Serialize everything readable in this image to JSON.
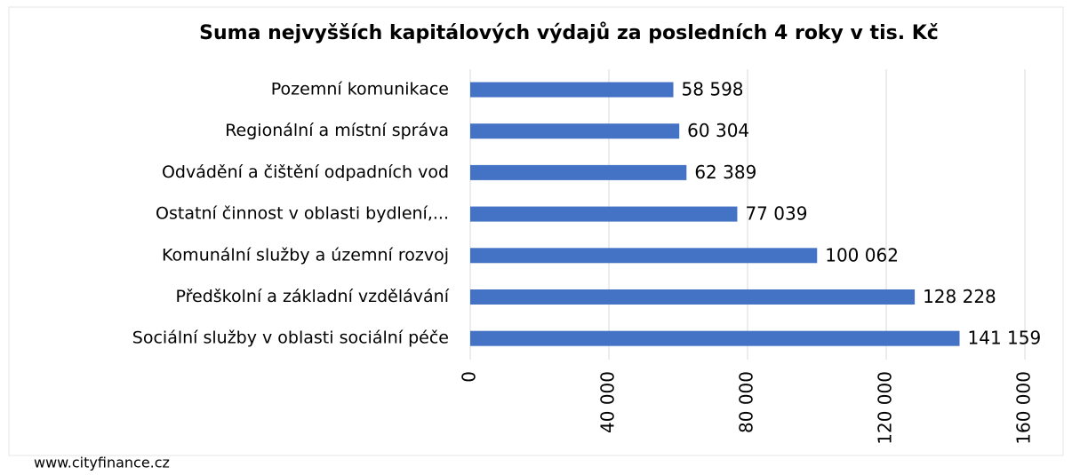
{
  "chart_data": {
    "type": "bar",
    "orientation": "horizontal",
    "title": "Suma nejvyšších kapitálových výdajů za posledních 4 roky v tis. Kč",
    "categories": [
      "Pozemní komunikace",
      "Regionální a místní správa",
      "Odvádění a čištění odpadních vod",
      "Ostatní činnost v oblasti bydlení,...",
      "Komunální služby a územní rozvoj",
      "Předškolní a základní vzdělávání",
      "Sociální služby v oblasti sociální péče"
    ],
    "values": [
      58598,
      60304,
      62389,
      77039,
      100062,
      128228,
      141159
    ],
    "value_labels": [
      "58 598",
      "60 304",
      "62 389",
      "77 039",
      "100 062",
      "128 228",
      "141 159"
    ],
    "color": "#4472c4",
    "xlim": [
      0,
      160000
    ],
    "xticks": [
      0,
      {
        "value": 40000,
        "label": "40 000"
      },
      {
        "value": 80000,
        "label": "80 000"
      },
      {
        "value": 120000,
        "label": "120 000"
      },
      {
        "value": 160000,
        "label": "160 000"
      }
    ],
    "grid": true
  },
  "footer": "www.cityfinance.cz"
}
